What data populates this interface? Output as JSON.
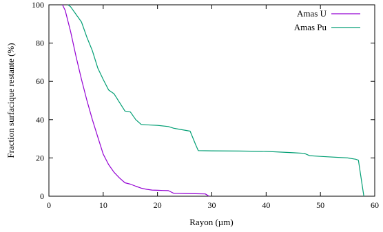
{
  "chart_data": {
    "type": "line",
    "title": "",
    "xlabel": "Rayon (µm)",
    "ylabel": "Fraction surfacique restante (%)",
    "xlim": [
      0,
      60
    ],
    "ylim": [
      0,
      100
    ],
    "xticks": [
      0,
      10,
      20,
      30,
      40,
      50,
      60
    ],
    "yticks": [
      0,
      20,
      40,
      60,
      80,
      100
    ],
    "grid": false,
    "legend_position": "top-right",
    "series": [
      {
        "name": "Amas U",
        "color": "#9400d3",
        "x": [
          2.5,
          3,
          4,
          5,
          6,
          7,
          8,
          9,
          10,
          11,
          12,
          13,
          14,
          15,
          16,
          17,
          18,
          19,
          20,
          21,
          22,
          22.5,
          23,
          25,
          27,
          28.8,
          29.5
        ],
        "y": [
          100,
          97,
          86,
          73,
          61,
          50,
          40,
          31,
          22,
          16.5,
          12.5,
          9.5,
          7,
          6.3,
          5.2,
          4.2,
          3.6,
          3.2,
          3.1,
          3.0,
          2.9,
          2.2,
          1.5,
          1.4,
          1.3,
          1.2,
          0
        ]
      },
      {
        "name": "Amas Pu",
        "color": "#009e73",
        "x": [
          3.5,
          4,
          5,
          6,
          7,
          8,
          9,
          10,
          11,
          12,
          13,
          14,
          15,
          16,
          17,
          18,
          20,
          22,
          23,
          25,
          26,
          27,
          27.5,
          30,
          35,
          40,
          45,
          47,
          48,
          50,
          55,
          56.5,
          57,
          58
        ],
        "y": [
          100,
          99,
          95,
          91,
          83,
          76,
          67,
          61,
          55.5,
          53.5,
          49,
          44.5,
          44,
          40,
          37.5,
          37.3,
          37,
          36.4,
          35.5,
          34.5,
          34,
          27,
          23.8,
          23.7,
          23.6,
          23.4,
          22.7,
          22.4,
          21.2,
          20.8,
          20,
          19.3,
          18.8,
          0
        ]
      }
    ]
  }
}
